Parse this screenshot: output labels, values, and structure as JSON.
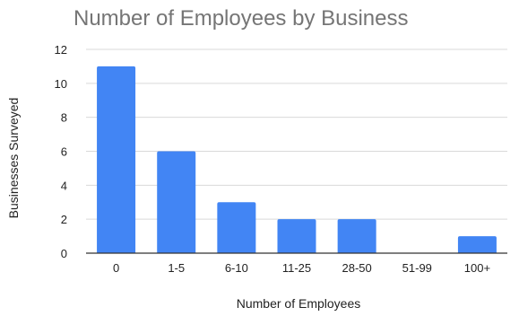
{
  "chart_data": {
    "type": "bar",
    "title": "Number of Employees by Business",
    "xlabel": "Number of Employees",
    "ylabel": "Businesses Surveyed",
    "categories": [
      "0",
      "1-5",
      "6-10",
      "11-25",
      "28-50",
      "51-99",
      "100+"
    ],
    "values": [
      11,
      6,
      3,
      2,
      2,
      0,
      1
    ],
    "ylim": [
      0,
      12
    ],
    "yticks": [
      0,
      2,
      4,
      6,
      8,
      10,
      12
    ],
    "grid": true,
    "bar_color": "#4285f4",
    "grid_color": "#d9d9d9",
    "axis_color": "#333333"
  }
}
